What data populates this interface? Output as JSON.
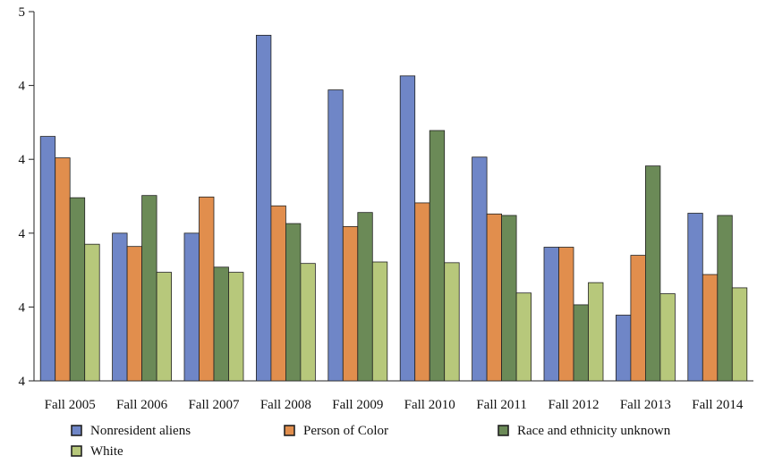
{
  "chart_data": {
    "type": "bar",
    "title": "",
    "xlabel": "",
    "ylabel": "",
    "categories": [
      "Fall 2005",
      "Fall 2006",
      "Fall 2007",
      "Fall 2008",
      "Fall 2009",
      "Fall 2010",
      "Fall 2011",
      "Fall 2012",
      "Fall 2013",
      "Fall 2014"
    ],
    "y_tick_labels": [
      "4",
      "4",
      "4",
      "4",
      "4",
      "5"
    ],
    "ylim": [
      0,
      5
    ],
    "grid": false,
    "legend_position": "bottom",
    "series": [
      {
        "name": "Nonresident aliens",
        "color": "#6f86c7",
        "values": [
          3.31,
          2.0,
          2.0,
          4.68,
          3.94,
          4.13,
          3.03,
          1.81,
          0.89,
          2.27
        ]
      },
      {
        "name": "Person of Color",
        "color": "#e18e4d",
        "values": [
          3.02,
          1.82,
          2.49,
          2.37,
          2.09,
          2.41,
          2.26,
          1.81,
          1.7,
          1.44
        ]
      },
      {
        "name": "Race and ethnicity unknown",
        "color": "#6b8a57",
        "values": [
          2.48,
          2.51,
          1.54,
          2.13,
          2.28,
          3.39,
          2.24,
          1.03,
          2.91,
          2.24
        ]
      },
      {
        "name": "White",
        "color": "#b7c87b",
        "values": [
          1.85,
          1.47,
          1.47,
          1.59,
          1.61,
          1.6,
          1.19,
          1.33,
          1.18,
          1.26
        ]
      }
    ]
  }
}
